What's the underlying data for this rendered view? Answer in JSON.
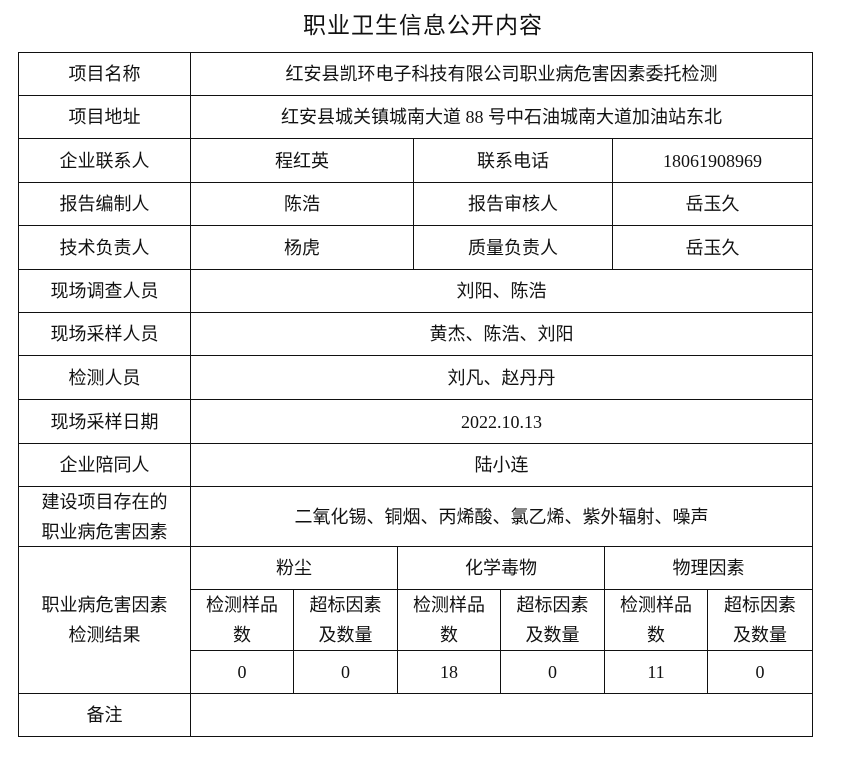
{
  "title": "职业卫生信息公开内容",
  "rows": {
    "project_name": {
      "label": "项目名称",
      "value": "红安县凯环电子科技有限公司职业病危害因素委托检测"
    },
    "project_address": {
      "label": "项目地址",
      "value": "红安县城关镇城南大道 88 号中石油城南大道加油站东北"
    },
    "contact": {
      "label": "企业联系人",
      "value": "程红英",
      "label2": "联系电话",
      "value2": "18061908969"
    },
    "report": {
      "label": "报告编制人",
      "value": "陈浩",
      "label2": "报告审核人",
      "value2": "岳玉久"
    },
    "tech": {
      "label": "技术负责人",
      "value": "杨虎",
      "label2": "质量负责人",
      "value2": "岳玉久"
    },
    "survey": {
      "label": "现场调查人员",
      "value": "刘阳、陈浩"
    },
    "sampling": {
      "label": "现场采样人员",
      "value": "黄杰、陈浩、刘阳"
    },
    "testers": {
      "label": "检测人员",
      "value": "刘凡、赵丹丹"
    },
    "date": {
      "label": "现场采样日期",
      "value": "2022.10.13"
    },
    "escort": {
      "label": "企业陪同人",
      "value": "陆小连"
    },
    "hazards": {
      "label_line1": "建设项目存在的",
      "label_line2": "职业病危害因素",
      "value": "二氧化锡、铜烟、丙烯酸、氯乙烯、紫外辐射、噪声"
    },
    "results": {
      "label_line1": "职业病危害因素",
      "label_line2": "检测结果",
      "groups": [
        "粉尘",
        "化学毒物",
        "物理因素"
      ],
      "sub_line1": [
        "检测样品",
        "超标因素"
      ],
      "sub_line2": [
        "数",
        "及数量"
      ],
      "values": [
        "0",
        "0",
        "18",
        "0",
        "11",
        "0"
      ]
    },
    "remarks": {
      "label": "备注",
      "value": ""
    }
  }
}
